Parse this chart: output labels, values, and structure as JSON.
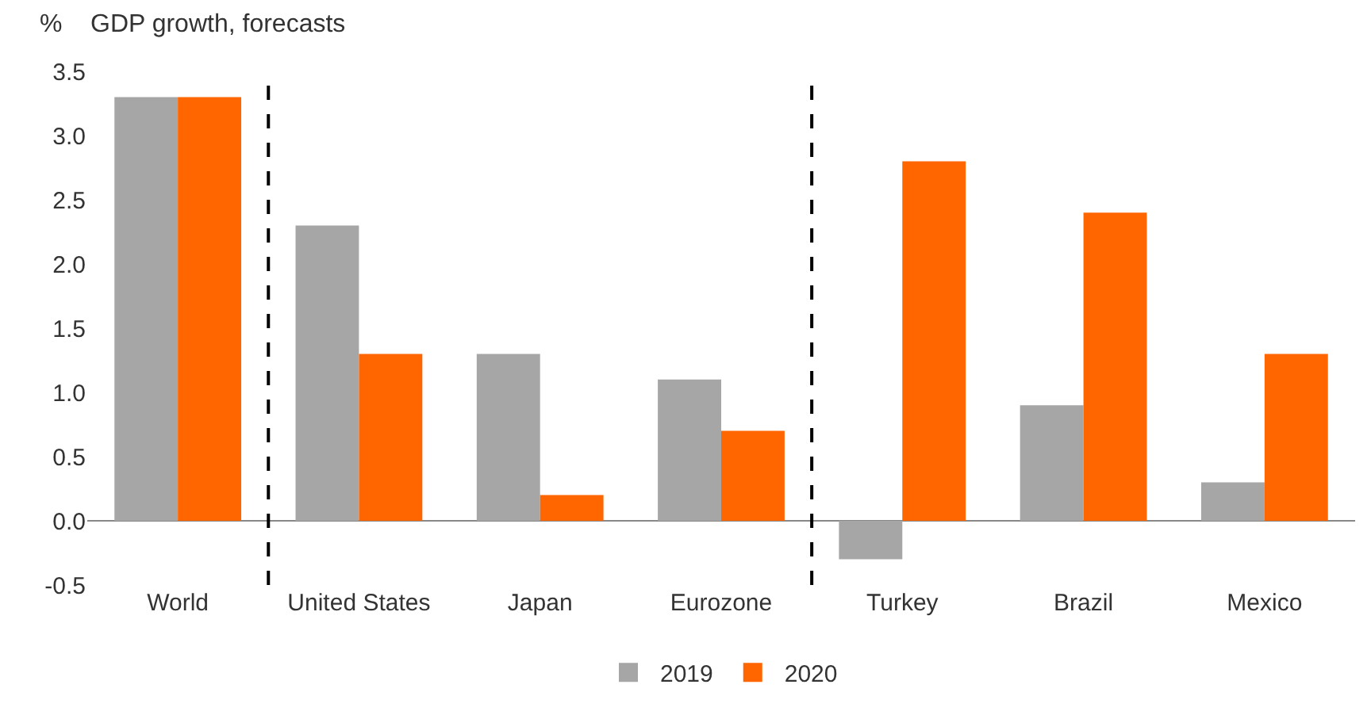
{
  "chart_data": {
    "type": "bar",
    "subtitle": "GDP growth, forecasts",
    "ylabel": "%",
    "categories": [
      "World",
      "United States",
      "Japan",
      "Eurozone",
      "Turkey",
      "Brazil",
      "Mexico"
    ],
    "series": [
      {
        "name": "2019",
        "color": "#a6a6a6",
        "values": [
          3.3,
          2.3,
          1.3,
          1.1,
          -0.3,
          0.9,
          0.3
        ]
      },
      {
        "name": "2020",
        "color": "#ff6600",
        "values": [
          3.3,
          1.3,
          0.2,
          0.7,
          2.8,
          2.4,
          1.3
        ]
      }
    ],
    "ylim": [
      -0.5,
      3.5
    ],
    "yticks": [
      {
        "value": -0.5,
        "label": "-0.5"
      },
      {
        "value": 0,
        "label": "0.0"
      },
      {
        "value": 0.5,
        "label": "0.5"
      },
      {
        "value": 1,
        "label": "1.0"
      },
      {
        "value": 1.5,
        "label": "1.5"
      },
      {
        "value": 2,
        "label": "2.0"
      },
      {
        "value": 2.5,
        "label": "2.5"
      },
      {
        "value": 3,
        "label": "3.0"
      },
      {
        "value": 3.5,
        "label": "3.5"
      }
    ],
    "legend": "bottom"
  }
}
